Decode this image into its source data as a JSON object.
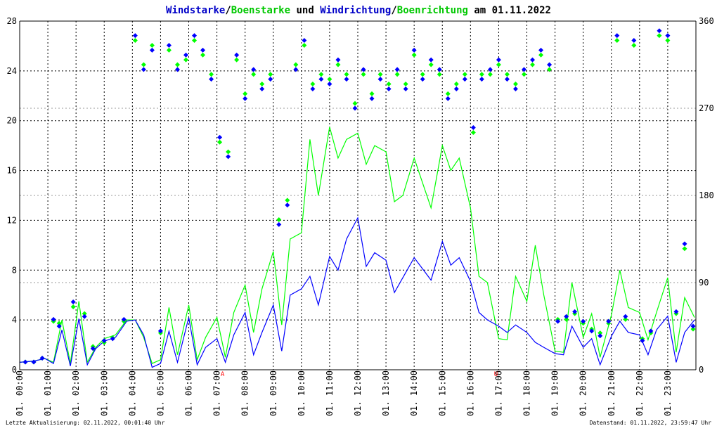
{
  "title": {
    "part1": "Windstarke",
    "sep1": "/",
    "part2": "Boenstarke",
    "part3": " und ",
    "part4": "Windrichtung",
    "sep2": "/",
    "part5": "Boenrichtung",
    "part6": " am 01.11.2022"
  },
  "footer": {
    "left": "Letzte Aktualisierung: 02.11.2022, 00:01:40 Uhr",
    "right": "Datenstand: 01.11.2022, 23:59:47 Uhr"
  },
  "colors": {
    "wind": "#0000ff",
    "gust": "#00ff00",
    "grid": "#000000",
    "marker": "#ff0000"
  },
  "chart_data": {
    "type": "line",
    "x_ticks": [
      "01. 00:00",
      "01. 01:00",
      "01. 02:00",
      "01. 03:00",
      "01. 04:00",
      "01. 05:00",
      "01. 06:00",
      "01. 07:00",
      "01. 08:00",
      "01. 09:00",
      "01. 10:00",
      "01. 11:00",
      "01. 12:00",
      "01. 13:00",
      "01. 14:00",
      "01. 15:00",
      "01. 16:00",
      "01. 17:00",
      "01. 18:00",
      "01. 19:00",
      "01. 20:00",
      "01. 21:00",
      "01. 22:00",
      "01. 23:00"
    ],
    "y_left_ticks": [
      "0",
      "4",
      "8",
      "12",
      "16",
      "20",
      "24",
      "28"
    ],
    "y_right_ticks": [
      "0",
      "90",
      "180",
      "270",
      "360"
    ],
    "ylim_left": [
      0,
      28
    ],
    "ylim_right": [
      0,
      360
    ],
    "xlim_hours": [
      0,
      24
    ],
    "grid": true,
    "markers": [
      {
        "hour": 7.2,
        "label": "A"
      },
      {
        "hour": 16.9,
        "label": "U"
      }
    ],
    "series": [
      {
        "name": "Windstarke",
        "axis": "left",
        "x_hours": [
          0,
          0.5,
          0.9,
          1.2,
          1.5,
          1.8,
          2.1,
          2.4,
          2.7,
          3.0,
          3.4,
          3.8,
          4.1,
          4.4,
          4.7,
          5.0,
          5.3,
          5.6,
          6.0,
          6.3,
          6.6,
          7.0,
          7.3,
          7.6,
          8.0,
          8.3,
          8.6,
          9.0,
          9.3,
          9.6,
          10.0,
          10.3,
          10.6,
          11.0,
          11.3,
          11.6,
          12.0,
          12.3,
          12.6,
          13.0,
          13.3,
          13.6,
          14.0,
          14.3,
          14.6,
          15.0,
          15.3,
          15.6,
          16.0,
          16.3,
          16.6,
          17.0,
          17.3,
          17.6,
          18.0,
          18.3,
          18.6,
          19.0,
          19.3,
          19.6,
          20.0,
          20.3,
          20.6,
          21.0,
          21.3,
          21.6,
          22.0,
          22.3,
          22.6,
          23.0,
          23.3,
          23.6,
          23.95
        ],
        "values": [
          0.6,
          0.7,
          0.9,
          0.5,
          3.2,
          0.3,
          4.1,
          0.4,
          1.7,
          2.3,
          2.6,
          3.9,
          4.0,
          2.8,
          0.2,
          0.5,
          3.1,
          0.6,
          4.2,
          0.4,
          1.8,
          2.5,
          0.6,
          2.8,
          4.6,
          1.2,
          3.0,
          5.2,
          1.5,
          6.0,
          6.5,
          7.5,
          5.2,
          9.1,
          8.0,
          10.5,
          12.2,
          8.3,
          9.4,
          8.8,
          6.2,
          7.4,
          9.0,
          8.1,
          7.2,
          10.3,
          8.4,
          9.0,
          7.1,
          4.6,
          4.0,
          3.5,
          3.0,
          3.6,
          3.0,
          2.2,
          1.8,
          1.3,
          1.2,
          3.5,
          1.8,
          2.5,
          0.4,
          2.7,
          3.9,
          3.0,
          2.8,
          1.2,
          3.2,
          4.3,
          0.6,
          3.0,
          4.0
        ]
      },
      {
        "name": "Boenstarke",
        "axis": "left",
        "x_hours": [
          0,
          0.5,
          0.9,
          1.2,
          1.5,
          1.8,
          2.1,
          2.4,
          2.7,
          3.0,
          3.4,
          3.8,
          4.1,
          4.4,
          4.7,
          5.0,
          5.3,
          5.6,
          6.0,
          6.3,
          6.6,
          7.0,
          7.3,
          7.6,
          8.0,
          8.3,
          8.6,
          9.0,
          9.3,
          9.6,
          10.0,
          10.3,
          10.6,
          11.0,
          11.3,
          11.6,
          12.0,
          12.3,
          12.6,
          13.0,
          13.3,
          13.6,
          14.0,
          14.3,
          14.6,
          15.0,
          15.3,
          15.6,
          16.0,
          16.3,
          16.6,
          17.0,
          17.3,
          17.6,
          18.0,
          18.3,
          18.6,
          19.0,
          19.3,
          19.6,
          20.0,
          20.3,
          20.6,
          21.0,
          21.3,
          21.6,
          22.0,
          22.3,
          22.6,
          23.0,
          23.3,
          23.6,
          23.95
        ],
        "values": [
          0.6,
          0.7,
          0.9,
          0.6,
          4.0,
          0.5,
          5.5,
          0.6,
          1.8,
          2.5,
          2.8,
          4.0,
          4.0,
          2.6,
          0.5,
          0.8,
          5.0,
          1.2,
          5.2,
          0.8,
          2.6,
          4.2,
          1.0,
          4.6,
          6.8,
          3.0,
          6.5,
          9.5,
          3.6,
          10.5,
          11.0,
          18.5,
          14.0,
          19.5,
          17.0,
          18.5,
          19.0,
          16.5,
          18.0,
          17.5,
          13.5,
          14.0,
          17.0,
          15.0,
          13.0,
          18.0,
          16.0,
          17.0,
          13.0,
          7.5,
          7.0,
          2.5,
          2.4,
          7.5,
          5.5,
          10.0,
          6.0,
          1.5,
          1.4,
          7.0,
          2.6,
          4.5,
          1.0,
          4.4,
          8.0,
          5.0,
          4.6,
          2.4,
          4.6,
          7.4,
          1.4,
          5.8,
          4.2
        ]
      },
      {
        "name": "Windrichtung",
        "axis": "right",
        "x_hours": [
          0.2,
          0.5,
          0.8,
          1.2,
          1.4,
          1.9,
          2.3,
          2.6,
          3.0,
          3.3,
          3.7,
          4.1,
          4.4,
          4.7,
          5.0,
          5.3,
          5.6,
          5.9,
          6.2,
          6.5,
          6.8,
          7.1,
          7.4,
          7.7,
          8.0,
          8.3,
          8.6,
          8.9,
          9.2,
          9.5,
          9.8,
          10.1,
          10.4,
          10.7,
          11.0,
          11.3,
          11.6,
          11.9,
          12.2,
          12.5,
          12.8,
          13.1,
          13.4,
          13.7,
          14.0,
          14.3,
          14.6,
          14.9,
          15.2,
          15.5,
          15.8,
          16.1,
          16.4,
          16.7,
          17.0,
          17.3,
          17.6,
          17.9,
          18.2,
          18.5,
          18.8,
          19.1,
          19.4,
          19.7,
          20.0,
          20.3,
          20.6,
          20.9,
          21.2,
          21.5,
          21.8,
          22.1,
          22.4,
          22.7,
          23.0,
          23.3,
          23.6,
          23.9
        ],
        "values": [
          8,
          8,
          12,
          52,
          45,
          70,
          55,
          22,
          30,
          32,
          52,
          345,
          310,
          330,
          40,
          335,
          310,
          325,
          345,
          330,
          300,
          240,
          220,
          325,
          280,
          310,
          290,
          300,
          150,
          170,
          310,
          340,
          290,
          300,
          295,
          320,
          300,
          270,
          310,
          280,
          300,
          290,
          310,
          290,
          330,
          300,
          320,
          310,
          280,
          290,
          300,
          250,
          300,
          310,
          320,
          300,
          290,
          310,
          320,
          330,
          315,
          50,
          55,
          60,
          50,
          40,
          35,
          50,
          345,
          55,
          340,
          30,
          40,
          350,
          345,
          60,
          130,
          45
        ]
      },
      {
        "name": "Boenrichtung",
        "axis": "right",
        "x_hours": [
          0.2,
          0.5,
          0.8,
          1.2,
          1.4,
          1.9,
          2.3,
          2.6,
          3.0,
          3.3,
          3.7,
          4.1,
          4.4,
          4.7,
          5.0,
          5.3,
          5.6,
          5.9,
          6.2,
          6.5,
          6.8,
          7.1,
          7.4,
          7.7,
          8.0,
          8.3,
          8.6,
          8.9,
          9.2,
          9.5,
          9.8,
          10.1,
          10.4,
          10.7,
          11.0,
          11.3,
          11.6,
          11.9,
          12.2,
          12.5,
          12.8,
          13.1,
          13.4,
          13.7,
          14.0,
          14.3,
          14.6,
          14.9,
          15.2,
          15.5,
          15.8,
          16.1,
          16.4,
          16.7,
          17.0,
          17.3,
          17.6,
          17.9,
          18.2,
          18.5,
          18.8,
          19.1,
          19.4,
          19.7,
          20.0,
          20.3,
          20.6,
          20.9,
          21.2,
          21.5,
          21.8,
          22.1,
          22.4,
          22.7,
          23.0,
          23.3,
          23.6,
          23.9
        ],
        "values": [
          8,
          8,
          12,
          50,
          48,
          65,
          58,
          24,
          28,
          33,
          50,
          340,
          315,
          335,
          38,
          330,
          315,
          320,
          340,
          325,
          305,
          235,
          225,
          320,
          285,
          305,
          295,
          305,
          155,
          175,
          315,
          335,
          295,
          305,
          300,
          315,
          305,
          275,
          305,
          285,
          305,
          295,
          305,
          295,
          325,
          305,
          315,
          305,
          285,
          295,
          305,
          245,
          305,
          305,
          315,
          305,
          295,
          305,
          315,
          325,
          310,
          52,
          52,
          58,
          48,
          42,
          38,
          48,
          340,
          52,
          335,
          32,
          38,
          345,
          340,
          58,
          125,
          42
        ]
      }
    ]
  }
}
